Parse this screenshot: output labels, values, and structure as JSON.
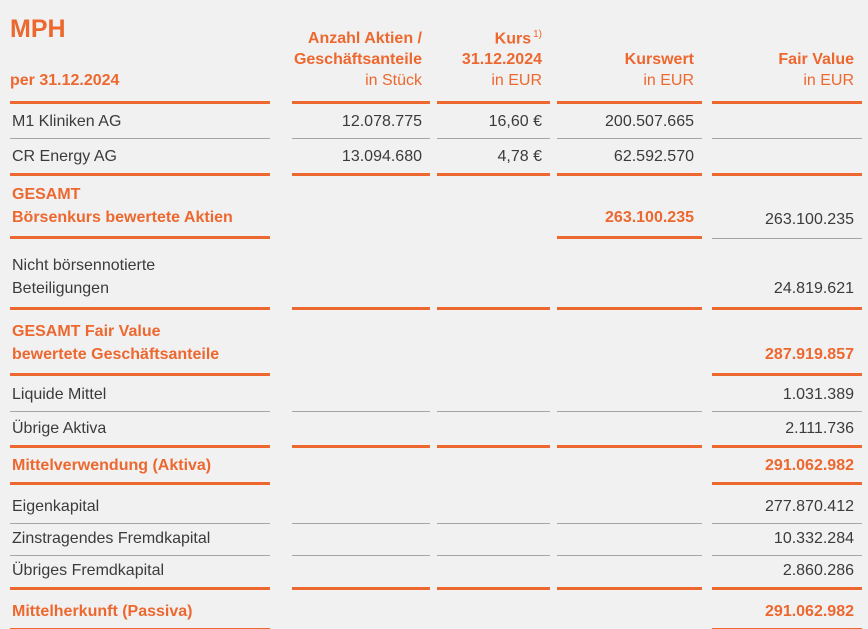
{
  "meta": {
    "title": "MPH",
    "subtitle": "per 31.12.2024"
  },
  "colors": {
    "accent": "#ED682F",
    "text": "#3B3B3B",
    "thin_line": "#A5A5A5",
    "background": "#F1F1F2"
  },
  "columns": {
    "anzahl": {
      "line1": "Anzahl Aktien /",
      "line2": "Geschäftsanteile",
      "unit": "in Stück"
    },
    "kurs": {
      "line1": "Kurs",
      "footnote": "1)",
      "line2": "31.12.2024",
      "unit": "in EUR"
    },
    "kurswert": {
      "label": "Kurswert",
      "unit": "in EUR"
    },
    "fair_value": {
      "label": "Fair Value",
      "unit": "in EUR"
    }
  },
  "rows": [
    {
      "label": "M1 Kliniken AG",
      "anzahl": "12.078.775",
      "kurs": "16,60 €",
      "kurswert": "200.507.665",
      "fair_value": ""
    },
    {
      "label": "CR Energy AG",
      "anzahl": "13.094.680",
      "kurs": "4,78 €",
      "kurswert": "62.592.570",
      "fair_value": ""
    },
    {
      "label": "GESAMT",
      "label2": "Börsenkurs bewertete Aktien",
      "kurswert": "263.100.235",
      "fair_value": "263.100.235"
    },
    {
      "label": "Nicht börsennotierte",
      "label2": "Beteiligungen",
      "fair_value": "24.819.621"
    },
    {
      "label": "GESAMT Fair Value",
      "label2": "bewertete Geschäftsanteile",
      "fair_value": "287.919.857"
    },
    {
      "label": "Liquide Mittel",
      "fair_value": "1.031.389"
    },
    {
      "label": "Übrige Aktiva",
      "fair_value": "2.111.736"
    },
    {
      "label": "Mittelverwendung (Aktiva)",
      "fair_value": "291.062.982"
    },
    {
      "label": "Eigenkapital",
      "fair_value": "277.870.412"
    },
    {
      "label": "Zinstragendes Fremdkapital",
      "fair_value": "10.332.284"
    },
    {
      "label": "Übriges Fremdkapital",
      "fair_value": "2.860.286"
    },
    {
      "label": "Mittelherkunft (Passiva)",
      "fair_value": "291.062.982"
    }
  ]
}
